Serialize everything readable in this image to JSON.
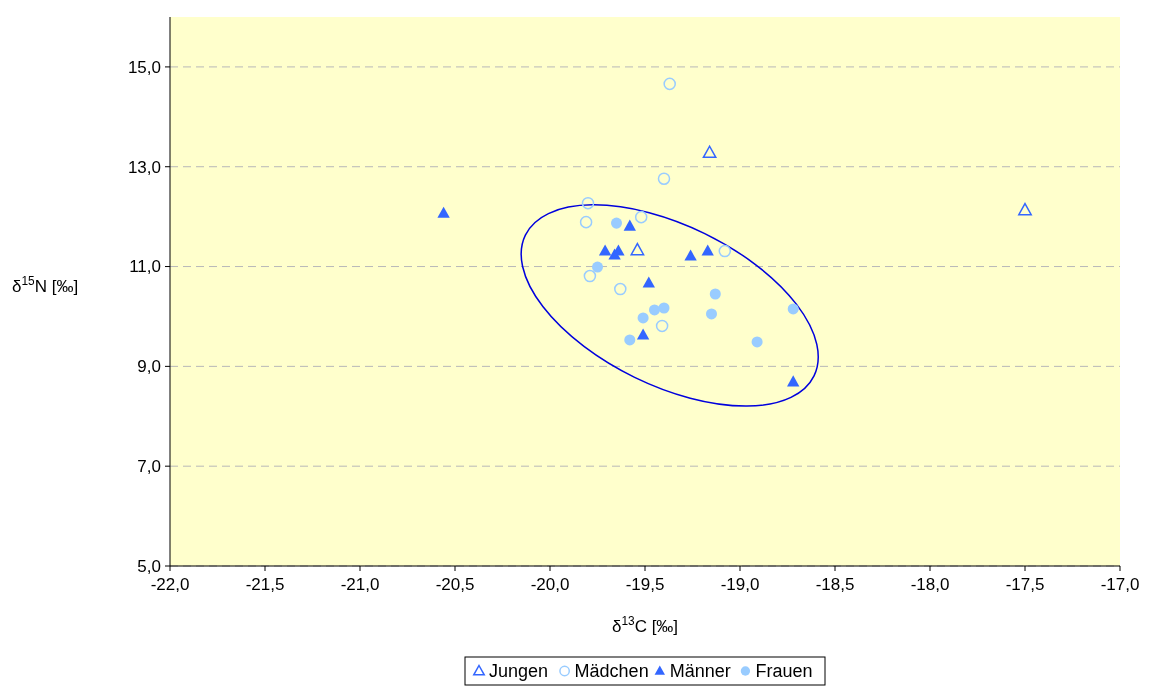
{
  "chart_data": {
    "type": "scatter",
    "xlabel": "δ$^{13}$C [‰]",
    "ylabel": "δ$^{15}$N [‰]",
    "xlim": [
      -22,
      -17
    ],
    "xticks": [
      {
        "value": -22,
        "label": "-22,0"
      },
      {
        "value": -21.5,
        "label": "-21,5"
      },
      {
        "value": -21,
        "label": "-21,0"
      },
      {
        "value": -20.5,
        "label": "-20,5"
      },
      {
        "value": -20,
        "label": "-20,0"
      },
      {
        "value": -19.5,
        "label": "-19,5"
      },
      {
        "value": -19,
        "label": "-19,0"
      },
      {
        "value": -18.5,
        "label": "-18,5"
      },
      {
        "value": -18,
        "label": "-18,0"
      },
      {
        "value": -17.5,
        "label": "-17,5"
      },
      {
        "value": -17,
        "label": "-17,0"
      }
    ],
    "ylim": [
      5,
      16
    ],
    "yticks": [
      {
        "value": 5,
        "label": "5,0"
      },
      {
        "value": 7,
        "label": "7,0"
      },
      {
        "value": 9,
        "label": "9,0"
      },
      {
        "value": 11,
        "label": "11,0"
      },
      {
        "value": 13,
        "label": "13,0"
      },
      {
        "value": 15,
        "label": "15,0"
      }
    ],
    "grid": "y",
    "legend": "bottom",
    "series": [
      {
        "name": "Jungen",
        "color": "#3366ff",
        "marker": "triangle",
        "x": [
          -19.16,
          -17.5,
          -19.54
        ],
        "values": [
          13.28,
          12.13,
          11.33
        ]
      },
      {
        "name": "Mädchen",
        "color": "#99ccff",
        "marker": "circle",
        "x": [
          -19.37,
          -19.4,
          -19.8,
          -19.81,
          -19.52,
          -19.08,
          -19.79,
          -19.63,
          -19.41
        ],
        "values": [
          14.66,
          12.76,
          12.27,
          11.89,
          11.99,
          11.31,
          10.81,
          10.55,
          9.81
        ]
      },
      {
        "name": "Männer",
        "color": "#3366ff",
        "marker": "triangle",
        "x": [
          -20.56,
          -19.58,
          -19.71,
          -19.66,
          -19.64,
          -19.26,
          -19.17,
          -19.48,
          -19.51,
          -18.72
        ],
        "values": [
          12.07,
          11.81,
          11.31,
          11.23,
          11.31,
          11.21,
          11.31,
          10.67,
          9.63,
          8.69
        ]
      },
      {
        "name": "Frauen",
        "color": "#99ccff",
        "marker": "circle",
        "x": [
          -19.65,
          -19.75,
          -19.13,
          -19.4,
          -19.45,
          -19.51,
          -19.15,
          -18.72,
          -18.91,
          -19.58
        ],
        "values": [
          11.87,
          10.99,
          10.45,
          10.17,
          10.13,
          9.97,
          10.05,
          10.15,
          9.49,
          9.53
        ]
      }
    ]
  }
}
